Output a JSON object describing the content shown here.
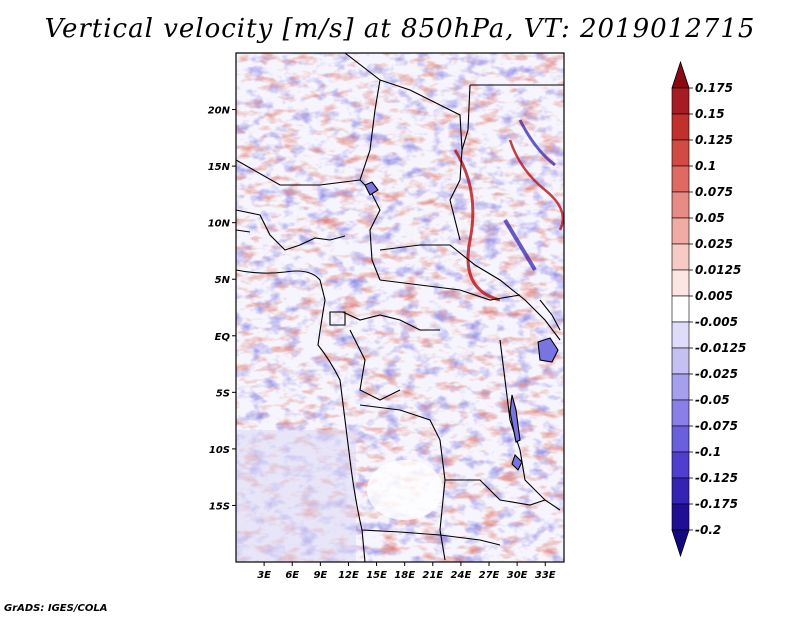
{
  "title": "Vertical velocity [m/s] at 850hPa, VT: 2019012715",
  "credit": "GrADS: IGES/COLA",
  "chart_data": {
    "type": "heatmap",
    "title": "Vertical velocity [m/s] at 850hPa, VT: 2019012715",
    "variable": "Vertical velocity",
    "units": "m/s",
    "level": "850hPa",
    "valid_time": "2019012715",
    "lon_range": [
      0,
      35
    ],
    "lat_range": [
      -20,
      25
    ],
    "x_ticks": [
      3,
      6,
      9,
      12,
      15,
      18,
      21,
      24,
      27,
      30,
      33
    ],
    "x_tick_labels": [
      "3E",
      "6E",
      "9E",
      "12E",
      "15E",
      "18E",
      "21E",
      "24E",
      "27E",
      "30E",
      "33E"
    ],
    "y_ticks": [
      20,
      15,
      10,
      5,
      0,
      -5,
      -10,
      -15
    ],
    "y_tick_labels": [
      "20N",
      "15N",
      "10N",
      "5N",
      "EQ",
      "5S",
      "10S",
      "15S"
    ],
    "colorbar": {
      "levels": [
        "0.175",
        "0.15",
        "0.125",
        "0.1",
        "0.075",
        "0.05",
        "0.025",
        "0.0125",
        "0.005",
        "-0.005",
        "-0.0125",
        "-0.025",
        "-0.05",
        "-0.075",
        "-0.1",
        "-0.125",
        "-0.175",
        "-0.2"
      ],
      "colors": [
        "#8a0a12",
        "#a51c24",
        "#c0302c",
        "#d24a44",
        "#de6a62",
        "#e78c84",
        "#efaba4",
        "#f6cbc6",
        "#fbe6e3",
        "#ffffff",
        "#dedcf8",
        "#c4c0f2",
        "#a6a0ec",
        "#8880e4",
        "#6a60dc",
        "#4e40cc",
        "#3424b4",
        "#200e94",
        "#140880"
      ],
      "top_arrow_color": "#8a0a12",
      "bottom_arrow_color": "#140880"
    }
  }
}
